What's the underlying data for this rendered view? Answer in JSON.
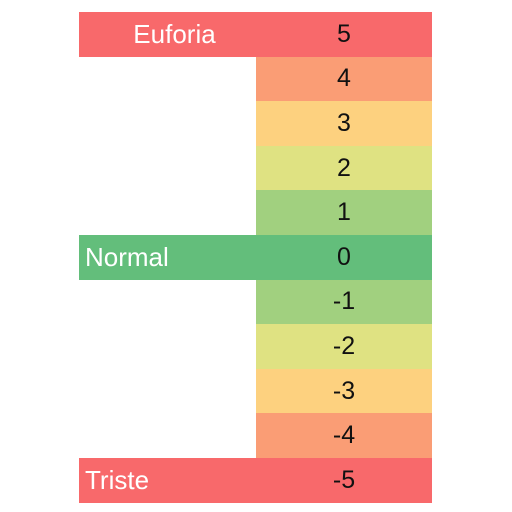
{
  "rows": [
    {
      "label": "Euforia",
      "value": "5",
      "color": "#F8696B"
    },
    {
      "label": "",
      "value": "4",
      "color": "#FA9D75"
    },
    {
      "label": "",
      "value": "3",
      "color": "#FDD17F"
    },
    {
      "label": "",
      "value": "2",
      "color": "#DFE282"
    },
    {
      "label": "",
      "value": "1",
      "color": "#A1D07F"
    },
    {
      "label": "Normal",
      "value": "0",
      "color": "#63BE7B"
    },
    {
      "label": "",
      "value": "-1",
      "color": "#A1D07F"
    },
    {
      "label": "",
      "value": "-2",
      "color": "#DFE282"
    },
    {
      "label": "",
      "value": "-3",
      "color": "#FDD17F"
    },
    {
      "label": "",
      "value": "-4",
      "color": "#FA9D75"
    },
    {
      "label": "Triste",
      "value": "-5",
      "color": "#F8696B"
    }
  ]
}
